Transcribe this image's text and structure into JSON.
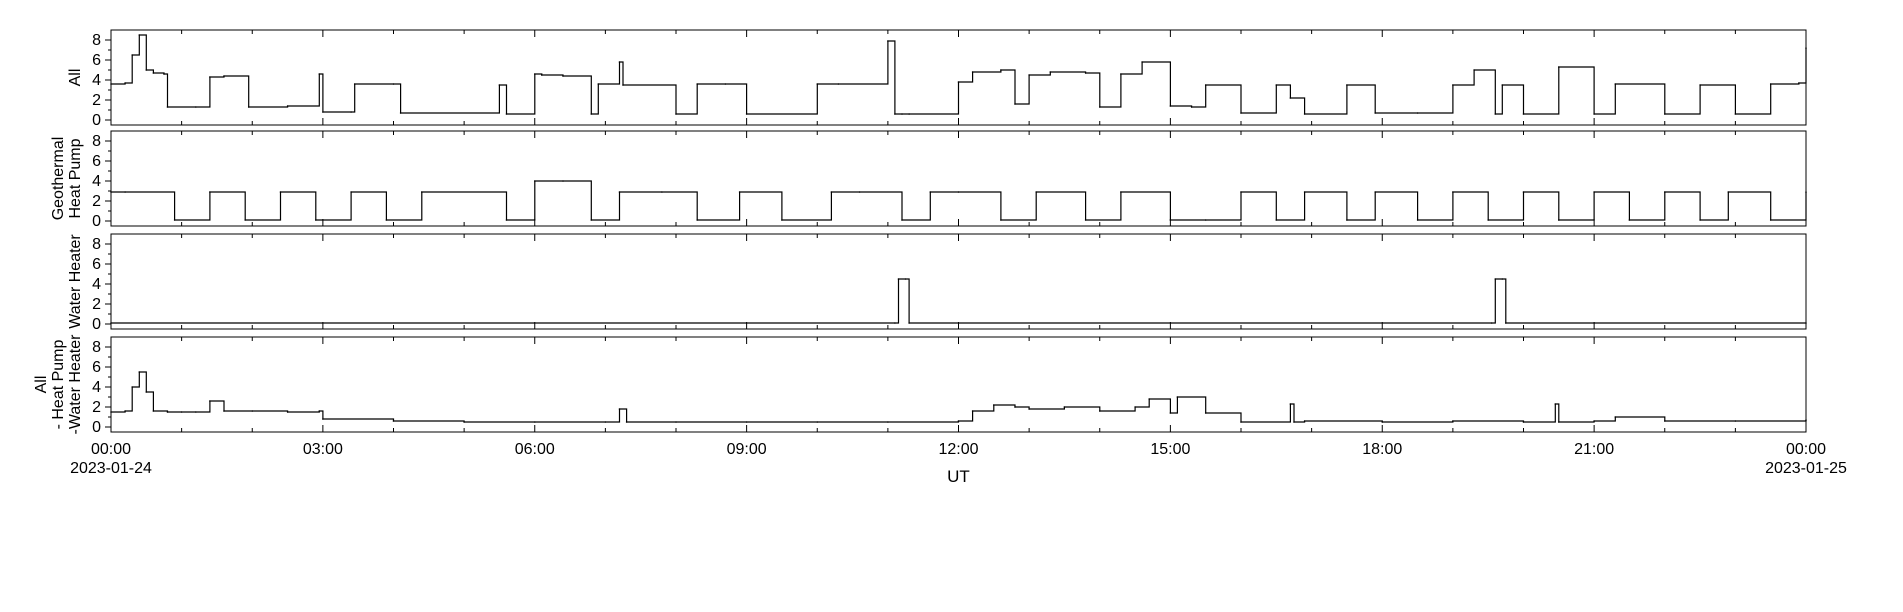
{
  "chart_data": {
    "type": "line",
    "xlabel": "UT",
    "x_ticks": [
      "00:00",
      "03:00",
      "06:00",
      "09:00",
      "12:00",
      "15:00",
      "18:00",
      "21:00",
      "00:00"
    ],
    "x_tick_dates": [
      "2023-01-24",
      "",
      "",
      "",
      "",
      "",
      "",
      "",
      "2023-01-25"
    ],
    "xlim_hours": [
      0,
      24
    ],
    "y_ticks": [
      "0",
      "2",
      "4",
      "6",
      "8"
    ],
    "ylim": [
      -0.5,
      9
    ],
    "panels": [
      {
        "ylabel_lines": [
          "All"
        ],
        "series": [
          {
            "x": [
              0,
              0.2,
              0.3,
              0.4,
              0.5,
              0.6,
              0.75,
              0.8,
              1.2,
              1.4,
              1.6,
              1.95,
              2.5,
              2.95,
              3.0,
              3.4,
              3.45,
              4.0,
              4.1,
              5.5,
              5.6,
              6.0,
              6.1,
              6.4,
              6.8,
              6.9,
              7.2,
              7.25,
              8.0,
              8.3,
              8.7,
              9.0,
              10.0,
              10.3,
              11.0,
              11.1,
              11.2,
              11.3,
              12.0,
              12.2,
              12.6,
              12.8,
              13.0,
              13.3,
              13.8,
              14.0,
              14.3,
              14.6,
              15.0,
              15.3,
              15.5,
              16.0,
              16.5,
              16.7,
              16.9,
              17.5,
              17.9,
              18.5,
              19.0,
              19.3,
              19.6,
              19.7,
              20.0,
              20.5,
              21.0,
              21.3,
              22.0,
              22.5,
              23.0,
              23.5,
              23.9,
              24.0
            ],
            "y": [
              3.6,
              3.7,
              6.5,
              8.5,
              5.0,
              4.7,
              4.6,
              1.3,
              1.3,
              4.3,
              4.4,
              1.3,
              1.4,
              4.6,
              0.8,
              0.8,
              3.6,
              3.6,
              0.7,
              3.5,
              0.6,
              4.6,
              4.5,
              4.4,
              0.6,
              3.6,
              5.8,
              3.5,
              0.6,
              3.6,
              3.6,
              0.6,
              3.6,
              3.6,
              7.9,
              0.6,
              0.6,
              0.6,
              3.8,
              4.8,
              5.0,
              1.6,
              4.5,
              4.8,
              4.7,
              1.3,
              4.6,
              5.8,
              1.4,
              1.3,
              3.5,
              0.7,
              3.5,
              2.2,
              0.6,
              3.5,
              0.7,
              0.7,
              3.5,
              5.0,
              0.6,
              3.5,
              0.6,
              5.3,
              0.6,
              3.6,
              0.6,
              3.5,
              0.6,
              3.6,
              3.7,
              7.2
            ]
          }
        ]
      },
      {
        "ylabel_lines": [
          "Geothermal",
          "Heat Pump"
        ],
        "series": [
          {
            "x": [
              0,
              0.2,
              0.9,
              1.4,
              1.9,
              2.4,
              2.9,
              3.4,
              3.9,
              4.4,
              5.6,
              6.0,
              6.4,
              6.8,
              7.2,
              7.8,
              8.3,
              8.9,
              9.5,
              10.2,
              10.6,
              11.2,
              11.6,
              12.0,
              12.6,
              13.1,
              13.8,
              14.3,
              15.0,
              15.5,
              16.0,
              16.5,
              16.9,
              17.5,
              17.9,
              18.5,
              19.0,
              19.5,
              20.0,
              20.5,
              21.0,
              21.5,
              22.0,
              22.5,
              22.9,
              23.5,
              24.0
            ],
            "y": [
              2.9,
              2.9,
              0.1,
              2.9,
              0.1,
              2.9,
              0.1,
              2.9,
              0.1,
              2.9,
              0.1,
              4.0,
              4.0,
              0.1,
              2.9,
              2.9,
              0.1,
              2.9,
              0.1,
              2.9,
              2.9,
              0.1,
              2.9,
              2.9,
              0.1,
              2.9,
              0.1,
              2.9,
              0.1,
              0.1,
              2.9,
              0.1,
              2.9,
              0.1,
              2.9,
              0.1,
              2.9,
              0.1,
              2.9,
              0.1,
              2.9,
              0.1,
              2.9,
              0.1,
              2.9,
              0.1,
              2.9
            ]
          }
        ]
      },
      {
        "ylabel_lines": [
          "Water Heater"
        ],
        "series": [
          {
            "x": [
              0,
              11.1,
              11.15,
              11.25,
              11.3,
              19.55,
              19.6,
              19.7,
              19.75,
              24.0
            ],
            "y": [
              0.1,
              0.1,
              4.5,
              4.5,
              0.1,
              0.1,
              4.5,
              4.5,
              0.1,
              0.1
            ]
          }
        ]
      },
      {
        "ylabel_lines": [
          "All",
          "- Heat Pump",
          "-Water Heater"
        ],
        "series": [
          {
            "x": [
              0,
              0.2,
              0.3,
              0.4,
              0.5,
              0.6,
              0.8,
              1.0,
              1.2,
              1.4,
              1.6,
              2.0,
              2.5,
              2.95,
              3.0,
              4.0,
              5.0,
              6.0,
              7.0,
              7.2,
              7.3,
              8.0,
              9.0,
              10.0,
              11.0,
              12.0,
              12.2,
              12.5,
              12.8,
              13.0,
              13.5,
              14.0,
              14.5,
              14.7,
              15.0,
              15.1,
              15.5,
              16.0,
              16.7,
              16.75,
              16.9,
              18.0,
              19.0,
              20.0,
              20.45,
              20.5,
              21.0,
              21.3,
              22.0,
              23.0,
              24.0
            ],
            "y": [
              1.5,
              1.6,
              4.0,
              5.5,
              3.5,
              1.6,
              1.5,
              1.5,
              1.5,
              2.6,
              1.6,
              1.6,
              1.5,
              1.6,
              0.8,
              0.6,
              0.5,
              0.5,
              0.5,
              1.8,
              0.5,
              0.5,
              0.5,
              0.5,
              0.5,
              0.6,
              1.6,
              2.2,
              2.0,
              1.8,
              2.0,
              1.6,
              2.0,
              2.8,
              1.4,
              3.0,
              1.4,
              0.5,
              2.3,
              0.5,
              0.6,
              0.5,
              0.6,
              0.5,
              2.3,
              0.5,
              0.6,
              1.0,
              0.6,
              0.6,
              0.7
            ]
          }
        ]
      }
    ]
  }
}
